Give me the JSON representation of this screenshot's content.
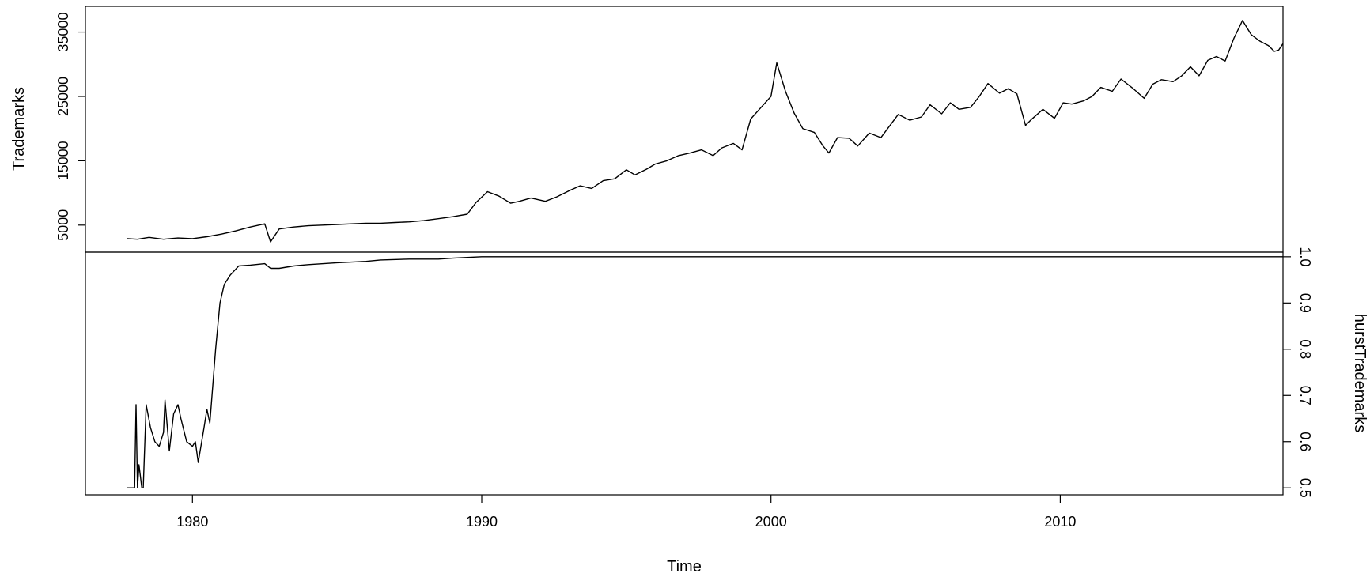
{
  "chart_data": {
    "type": "line",
    "layout": "stacked-panels",
    "title": "",
    "xlabel": "Time",
    "xlim": [
      1976.3,
      2017.7
    ],
    "x_ticks": [
      1980,
      1990,
      2000,
      2010
    ],
    "x_tick_labels": [
      "1980",
      "1990",
      "2000",
      "2010"
    ],
    "series_color": "#000000",
    "grid": false,
    "panels": [
      {
        "name": "top",
        "ylabel": "Trademarks",
        "y_axis_side": "left",
        "ylim": [
          800,
          39000
        ],
        "y_ticks": [
          5000,
          15000,
          25000,
          35000
        ],
        "y_tick_labels": [
          "5000",
          "15000",
          "25000",
          "35000"
        ],
        "series": [
          {
            "x": [
              1977.75,
              1978.1,
              1978.5,
              1979.0,
              1979.5,
              1980.0,
              1980.5,
              1981.0,
              1981.5,
              1982.0,
              1982.5,
              1982.7,
              1983.0,
              1983.5,
              1984.0,
              1984.5,
              1985.0,
              1985.5,
              1986.0,
              1986.5,
              1987.0,
              1987.5,
              1988.0,
              1988.5,
              1989.0,
              1989.5,
              1989.8,
              1990.2,
              1990.6,
              1991.0,
              1991.3,
              1991.7,
              1992.2,
              1992.6,
              1993.0,
              1993.4,
              1993.8,
              1994.2,
              1994.6,
              1995.0,
              1995.3,
              1995.7,
              1996.0,
              1996.4,
              1996.8,
              1997.2,
              1997.6,
              1998.0,
              1998.3,
              1998.7,
              1999.0,
              1999.3,
              1999.7,
              2000.0,
              2000.2,
              2000.5,
              2000.8,
              2001.1,
              2001.5,
              2001.8,
              2002.0,
              2002.3,
              2002.7,
              2003.0,
              2003.4,
              2003.8,
              2004.1,
              2004.4,
              2004.8,
              2005.2,
              2005.5,
              2005.9,
              2006.2,
              2006.5,
              2006.9,
              2007.2,
              2007.5,
              2007.9,
              2008.2,
              2008.5,
              2008.8,
              2009.0,
              2009.4,
              2009.8,
              2010.1,
              2010.4,
              2010.8,
              2011.1,
              2011.4,
              2011.8,
              2012.1,
              2012.5,
              2012.9,
              2013.2,
              2013.5,
              2013.9,
              2014.2,
              2014.5,
              2014.8,
              2015.1,
              2015.4,
              2015.7,
              2016.0,
              2016.3,
              2016.6,
              2016.9,
              2017.2,
              2017.4,
              2017.55,
              2017.7
            ],
            "values": [
              2900,
              2800,
              3100,
              2800,
              3000,
              2900,
              3200,
              3600,
              4100,
              4700,
              5200,
              2400,
              4400,
              4700,
              4900,
              5000,
              5100,
              5200,
              5300,
              5300,
              5400,
              5500,
              5700,
              6000,
              6300,
              6700,
              8500,
              10200,
              9500,
              8400,
              8700,
              9200,
              8700,
              9400,
              10300,
              11100,
              10700,
              11900,
              12200,
              13600,
              12800,
              13700,
              14500,
              15000,
              15800,
              16200,
              16700,
              15800,
              17000,
              17700,
              16700,
              21500,
              23500,
              25000,
              30200,
              25800,
              22400,
              20000,
              19400,
              17300,
              16200,
              18600,
              18500,
              17300,
              19300,
              18600,
              20400,
              22200,
              21300,
              21800,
              23700,
              22300,
              24000,
              23000,
              23300,
              25000,
              27000,
              25500,
              26200,
              25400,
              20500,
              21400,
              23000,
              21600,
              24000,
              23800,
              24300,
              25000,
              26400,
              25800,
              27700,
              26300,
              24700,
              26900,
              27600,
              27300,
              28200,
              29600,
              28200,
              30600,
              31200,
              30500,
              34000,
              36800,
              34600,
              33600,
              32900,
              32000,
              32200,
              33200
            ]
          }
        ]
      },
      {
        "name": "bottom",
        "ylabel": "hurstTrademarks",
        "y_axis_side": "right",
        "ylim": [
          0.485,
          1.01
        ],
        "y_ticks": [
          0.5,
          0.6,
          0.7,
          0.8,
          0.9,
          1.0
        ],
        "y_tick_labels": [
          "0.5",
          "0.6",
          "0.7",
          "0.8",
          "0.9",
          "1.0"
        ],
        "series": [
          {
            "x": [
              1977.75,
              1978.0,
              1978.05,
              1978.1,
              1978.15,
              1978.25,
              1978.3,
              1978.4,
              1978.55,
              1978.7,
              1978.85,
              1979.0,
              1979.05,
              1979.2,
              1979.35,
              1979.5,
              1979.6,
              1979.8,
              1980.0,
              1980.1,
              1980.2,
              1980.4,
              1980.5,
              1980.6,
              1980.8,
              1980.95,
              1981.1,
              1981.3,
              1981.6,
              1982.0,
              1982.5,
              1982.7,
              1983.0,
              1983.5,
              1984.0,
              1985.0,
              1986.0,
              1986.5,
              1987.5,
              1988.5,
              1989.0,
              1990.0,
              2000.0,
              2010.0,
              2017.7
            ],
            "values": [
              0.5,
              0.5,
              0.68,
              0.5,
              0.55,
              0.5,
              0.5,
              0.68,
              0.63,
              0.6,
              0.59,
              0.62,
              0.69,
              0.58,
              0.66,
              0.68,
              0.65,
              0.6,
              0.59,
              0.6,
              0.555,
              0.63,
              0.67,
              0.64,
              0.8,
              0.9,
              0.94,
              0.96,
              0.98,
              0.982,
              0.985,
              0.975,
              0.975,
              0.98,
              0.983,
              0.987,
              0.99,
              0.993,
              0.995,
              0.995,
              0.997,
              1.0,
              1.0,
              1.0,
              1.0
            ]
          }
        ]
      }
    ]
  }
}
